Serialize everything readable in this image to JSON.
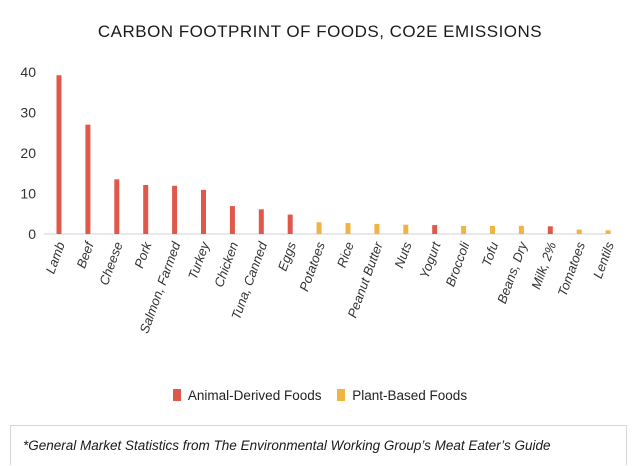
{
  "chart_data": {
    "type": "bar",
    "title": "CARBON FOOTPRINT OF FOODS, CO2E EMISSIONS",
    "ylim": [
      0,
      40
    ],
    "yticks": [
      0,
      10,
      20,
      30,
      40
    ],
    "grid": false,
    "legend_position": "bottom",
    "categories": [
      "Lamb",
      "Beef",
      "Cheese",
      "Pork",
      "Salmon, Farmed",
      "Turkey",
      "Chicken",
      "Tuna, Canned",
      "Eggs",
      "Potatoes",
      "Rice",
      "Peanut Butter",
      "Nuts",
      "Yogurt",
      "Broccoli",
      "Tofu",
      "Beans, Dry",
      "Milk, 2%",
      "Tomatoes",
      "Lentils"
    ],
    "values": [
      39.2,
      27.0,
      13.5,
      12.1,
      11.9,
      10.9,
      6.9,
      6.1,
      4.8,
      2.9,
      2.7,
      2.5,
      2.3,
      2.2,
      2.0,
      2.0,
      2.0,
      1.9,
      1.1,
      0.9
    ],
    "groups": [
      "Animal-Derived Foods",
      "Animal-Derived Foods",
      "Animal-Derived Foods",
      "Animal-Derived Foods",
      "Animal-Derived Foods",
      "Animal-Derived Foods",
      "Animal-Derived Foods",
      "Animal-Derived Foods",
      "Animal-Derived Foods",
      "Plant-Based Foods",
      "Plant-Based Foods",
      "Plant-Based Foods",
      "Plant-Based Foods",
      "Animal-Derived Foods",
      "Plant-Based Foods",
      "Plant-Based Foods",
      "Plant-Based Foods",
      "Animal-Derived Foods",
      "Plant-Based Foods",
      "Plant-Based Foods"
    ],
    "legend": [
      {
        "name": "Animal-Derived Foods",
        "color": "#e0584a"
      },
      {
        "name": "Plant-Based Foods",
        "color": "#f0b445"
      }
    ]
  },
  "footnote": "*General Market Statistics from The Environmental Working Group’s Meat Eater’s Guide"
}
